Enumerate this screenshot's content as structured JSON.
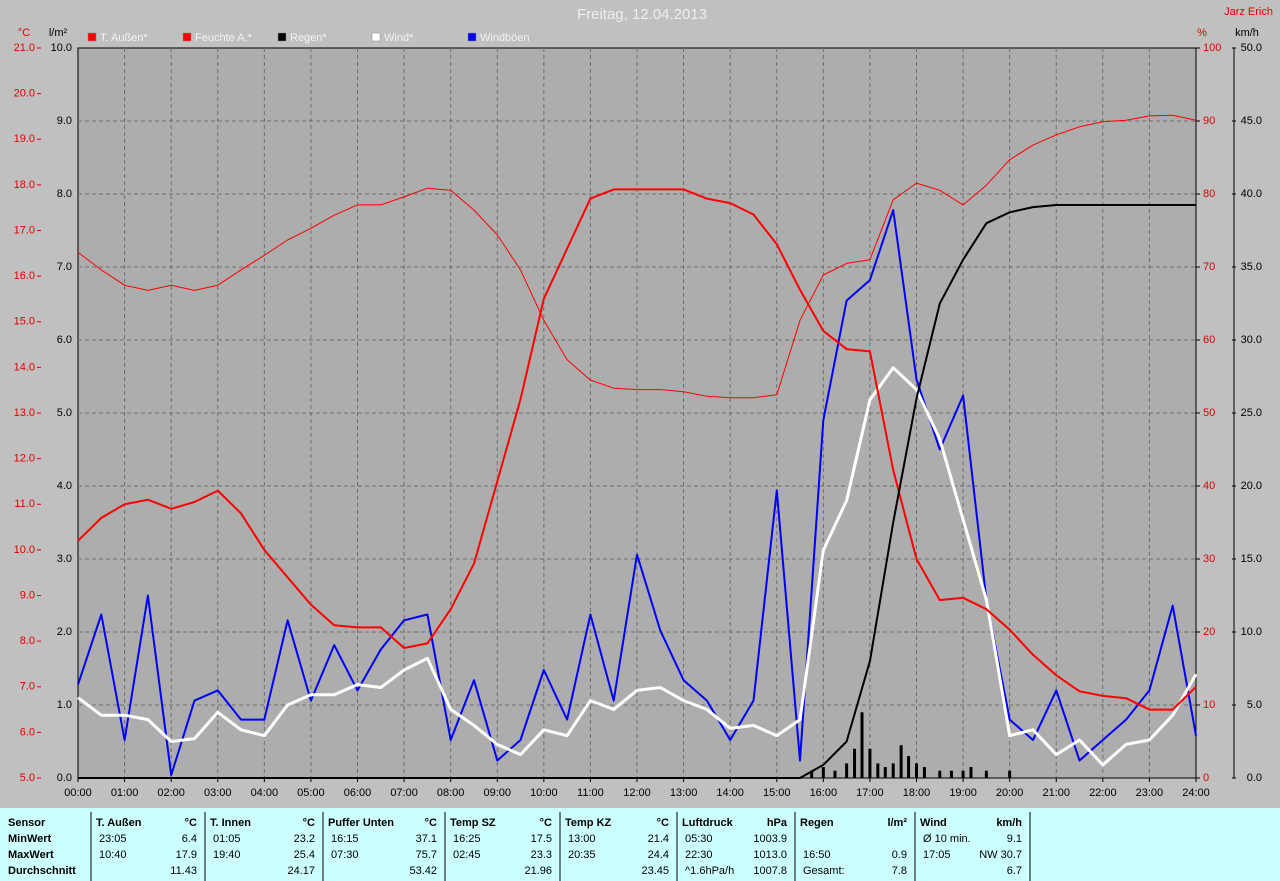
{
  "chart_data": {
    "type": "line",
    "title": "Freitag, 12.04.2013",
    "author": "Jarz Erich",
    "ylabel": "°C",
    "y2label": "l/m²",
    "y3label": "%",
    "y4label": "km/h",
    "grid": true,
    "xlim": [
      0,
      24
    ],
    "xticks": [
      {
        "value": 0,
        "label": "00:00"
      },
      {
        "value": 1,
        "label": "01:00"
      },
      {
        "value": 2,
        "label": "02:00"
      },
      {
        "value": 3,
        "label": "03:00"
      },
      {
        "value": 4,
        "label": "04:00"
      },
      {
        "value": 5,
        "label": "05:00"
      },
      {
        "value": 6,
        "label": "06:00"
      },
      {
        "value": 7,
        "label": "07:00"
      },
      {
        "value": 8,
        "label": "08:00"
      },
      {
        "value": 9,
        "label": "09:00"
      },
      {
        "value": 10,
        "label": "10:00"
      },
      {
        "value": 11,
        "label": "11:00"
      },
      {
        "value": 12,
        "label": "12:00"
      },
      {
        "value": 13,
        "label": "13:00"
      },
      {
        "value": 14,
        "label": "14:00"
      },
      {
        "value": 15,
        "label": "15:00"
      },
      {
        "value": 16,
        "label": "16:00"
      },
      {
        "value": 17,
        "label": "17:00"
      },
      {
        "value": 18,
        "label": "18:00"
      },
      {
        "value": 19,
        "label": "19:00"
      },
      {
        "value": 20,
        "label": "20:00"
      },
      {
        "value": 21,
        "label": "21:00"
      },
      {
        "value": 22,
        "label": "22:00"
      },
      {
        "value": 23,
        "label": "23:00"
      },
      {
        "value": 24,
        "label": "24:00"
      }
    ],
    "ylim": [
      5,
      21
    ],
    "yticks": [
      {
        "value": 5,
        "label": "5.0"
      },
      {
        "value": 6,
        "label": "6.0"
      },
      {
        "value": 7,
        "label": "7.0"
      },
      {
        "value": 8,
        "label": "8.0"
      },
      {
        "value": 9,
        "label": "9.0"
      },
      {
        "value": 10,
        "label": "10.0"
      },
      {
        "value": 11,
        "label": "11.0"
      },
      {
        "value": 12,
        "label": "12.0"
      },
      {
        "value": 13,
        "label": "13.0"
      },
      {
        "value": 14,
        "label": "14.0"
      },
      {
        "value": 15,
        "label": "15.0"
      },
      {
        "value": 16,
        "label": "16.0"
      },
      {
        "value": 17,
        "label": "17.0"
      },
      {
        "value": 18,
        "label": "18.0"
      },
      {
        "value": 19,
        "label": "19.0"
      },
      {
        "value": 20,
        "label": "20.0"
      },
      {
        "value": 21,
        "label": "21.0"
      }
    ],
    "y2lim": [
      0,
      10
    ],
    "y2ticks": [
      {
        "value": 0,
        "label": "0.0"
      },
      {
        "value": 1,
        "label": "1.0"
      },
      {
        "value": 2,
        "label": "2.0"
      },
      {
        "value": 3,
        "label": "3.0"
      },
      {
        "value": 4,
        "label": "4.0"
      },
      {
        "value": 5,
        "label": "5.0"
      },
      {
        "value": 6,
        "label": "6.0"
      },
      {
        "value": 7,
        "label": "7.0"
      },
      {
        "value": 8,
        "label": "8.0"
      },
      {
        "value": 9,
        "label": "9.0"
      },
      {
        "value": 10,
        "label": "10.0"
      }
    ],
    "y3lim": [
      0,
      100
    ],
    "y3ticks": [
      0,
      10,
      20,
      30,
      40,
      50,
      60,
      70,
      80,
      90,
      100
    ],
    "y4lim": [
      0,
      50
    ],
    "y4ticks": [
      {
        "value": 0,
        "label": "0.0"
      },
      {
        "value": 5,
        "label": "5.0"
      },
      {
        "value": 10,
        "label": "10.0"
      },
      {
        "value": 15,
        "label": "15.0"
      },
      {
        "value": 20,
        "label": "20.0"
      },
      {
        "value": 25,
        "label": "25.0"
      },
      {
        "value": 30,
        "label": "30.0"
      },
      {
        "value": 35,
        "label": "35.0"
      },
      {
        "value": 40,
        "label": "40.0"
      },
      {
        "value": 45,
        "label": "45.0"
      },
      {
        "value": 50,
        "label": "50.0"
      }
    ],
    "x": [
      0,
      0.5,
      1,
      1.5,
      2,
      2.5,
      3,
      3.5,
      4,
      4.5,
      5,
      5.5,
      6,
      6.5,
      7,
      7.5,
      8,
      8.5,
      9,
      9.5,
      10,
      10.5,
      11,
      11.5,
      12,
      12.5,
      13,
      13.5,
      14,
      14.5,
      15,
      15.5,
      16,
      16.5,
      17,
      17.5,
      18,
      18.5,
      19,
      19.5,
      20,
      20.5,
      21,
      21.5,
      22,
      22.5,
      23,
      23.5,
      24
    ],
    "series": [
      {
        "name": "T. Außen*",
        "color": "#ff0000",
        "axis": "y",
        "values": [
          10.2,
          10.7,
          11.0,
          11.1,
          10.9,
          11.05,
          11.3,
          10.8,
          10.0,
          9.4,
          8.8,
          8.35,
          8.3,
          8.3,
          7.85,
          7.95,
          8.7,
          9.7,
          11.5,
          13.3,
          15.5,
          16.6,
          17.7,
          17.9,
          17.9,
          17.9,
          17.9,
          17.7,
          17.6,
          17.35,
          16.7,
          15.7,
          14.8,
          14.4,
          14.35,
          11.75,
          9.8,
          8.9,
          8.95,
          8.7,
          8.25,
          7.7,
          7.25,
          6.9,
          6.8,
          6.75,
          6.5,
          6.5,
          7.0
        ]
      },
      {
        "name": "Feuchte A.*",
        "color": "#ff0000",
        "axis": "y3",
        "values": [
          72,
          69.6,
          67.5,
          66.8,
          67.5,
          66.8,
          67.5,
          69.6,
          71.6,
          73.7,
          75.3,
          77.1,
          78.5,
          78.5,
          79.6,
          80.8,
          80.5,
          77.8,
          74.4,
          69.6,
          62.7,
          57.3,
          54.5,
          53.4,
          53.2,
          53.2,
          52.9,
          52.3,
          52.1,
          52.1,
          52.5,
          62.7,
          68.9,
          70.5,
          71,
          79.2,
          81.5,
          80.5,
          78.5,
          81.2,
          84.7,
          86.7,
          88.1,
          89.2,
          89.9,
          90.1,
          90.7,
          90.8,
          90.1
        ]
      },
      {
        "name": "Regen*",
        "color": "#000000",
        "axis": "y2",
        "values": [
          0,
          0,
          0,
          0,
          0,
          0,
          0,
          0,
          0,
          0,
          0,
          0,
          0,
          0,
          0,
          0,
          0,
          0,
          0,
          0,
          0,
          0,
          0,
          0,
          0,
          0,
          0,
          0,
          0,
          0,
          0,
          0,
          0.18,
          0.5,
          1.6,
          3.5,
          5.2,
          6.5,
          7.1,
          7.6,
          7.75,
          7.82,
          7.85,
          7.85,
          7.85,
          7.85,
          7.85,
          7.85,
          7.85
        ]
      },
      {
        "name": "Wind*",
        "color": "#ffffff",
        "axis": "y4",
        "values": [
          5.5,
          4.3,
          4.3,
          4.0,
          2.5,
          2.7,
          4.5,
          3.3,
          2.9,
          5.0,
          5.7,
          5.7,
          6.4,
          6.2,
          7.4,
          8.2,
          4.7,
          3.6,
          2.3,
          1.6,
          3.3,
          2.9,
          5.3,
          4.7,
          6.0,
          6.2,
          5.3,
          4.7,
          3.4,
          3.6,
          2.9,
          4.0,
          15.6,
          19.0,
          25.9,
          28.1,
          26.6,
          23.2,
          17.7,
          12.2,
          2.9,
          3.3,
          1.6,
          2.6,
          0.9,
          2.3,
          2.6,
          4.3,
          7.1
        ]
      },
      {
        "name": "Windböen",
        "color": "#0000ff",
        "axis": "y4",
        "values": [
          6.4,
          11.2,
          2.6,
          12.5,
          0.2,
          5.3,
          6.0,
          4.0,
          4.0,
          10.8,
          5.3,
          9.1,
          6.0,
          8.8,
          10.8,
          11.2,
          2.6,
          6.7,
          1.2,
          2.6,
          7.4,
          4.0,
          11.2,
          5.3,
          15.3,
          10.1,
          6.7,
          5.3,
          2.6,
          5.3,
          19.7,
          1.2,
          24.5,
          32.7,
          34.1,
          38.9,
          27.3,
          22.5,
          26.2,
          12.2,
          4.0,
          2.6,
          6.0,
          1.2,
          2.6,
          4.0,
          6.0,
          11.8,
          2.9
        ]
      }
    ],
    "bars": {
      "color": "#000000",
      "axis": "y2",
      "x": [
        15.75,
        16,
        16.25,
        16.5,
        16.67,
        16.83,
        17,
        17.17,
        17.33,
        17.5,
        17.67,
        17.83,
        18,
        18.17,
        18.5,
        18.75,
        19,
        19.17,
        19.5,
        20
      ],
      "values": [
        0.1,
        0.15,
        0.1,
        0.2,
        0.4,
        0.9,
        0.4,
        0.2,
        0.15,
        0.2,
        0.45,
        0.3,
        0.2,
        0.15,
        0.1,
        0.1,
        0.1,
        0.15,
        0.1,
        0.1
      ]
    }
  },
  "stats": {
    "row_labels": [
      "Sensor",
      "MinWert",
      "MaxWert",
      "Durchschnitt"
    ],
    "groups": [
      {
        "name": "T. Außen",
        "unit": "°C",
        "min": [
          "23:05",
          "6.4"
        ],
        "max": [
          "10:40",
          "17.9"
        ],
        "avg": [
          null,
          "11.43"
        ]
      },
      {
        "name": "T. Innen",
        "unit": "°C",
        "min": [
          "01:05",
          "23.2"
        ],
        "max": [
          "19:40",
          "25.4"
        ],
        "avg": [
          null,
          "24.17"
        ]
      },
      {
        "name": "Puffer Unten",
        "unit": "°C",
        "min": [
          "16:15",
          "37.1"
        ],
        "max": [
          "07:30",
          "75.7"
        ],
        "avg": [
          null,
          "53.42"
        ]
      },
      {
        "name": "Temp SZ",
        "unit": "°C",
        "min": [
          "16:25",
          "17.5"
        ],
        "max": [
          "02:45",
          "23.3"
        ],
        "avg": [
          null,
          "21.96"
        ]
      },
      {
        "name": "Temp KZ",
        "unit": "°C",
        "min": [
          "13:00",
          "21.4"
        ],
        "max": [
          "20:35",
          "24.4"
        ],
        "avg": [
          null,
          "23.45"
        ]
      },
      {
        "name": "Luftdruck",
        "unit": "hPa",
        "min": [
          "05:30",
          "1003.9"
        ],
        "max": [
          "22:30",
          "1013.0"
        ],
        "avg": [
          "^1.6hPa/h",
          "1007.8"
        ]
      },
      {
        "name": "Regen",
        "unit": "l/m²",
        "min": [
          null,
          null
        ],
        "max": [
          "16:50",
          "0.9"
        ],
        "avg": [
          "Gesamt:",
          "7.8"
        ]
      },
      {
        "name": "Wind",
        "unit": "km/h",
        "min": [
          "Ø 10 min.",
          "9.1"
        ],
        "max": [
          "17:05",
          "NW 30.7"
        ],
        "avg": [
          null,
          "6.7"
        ]
      }
    ]
  }
}
